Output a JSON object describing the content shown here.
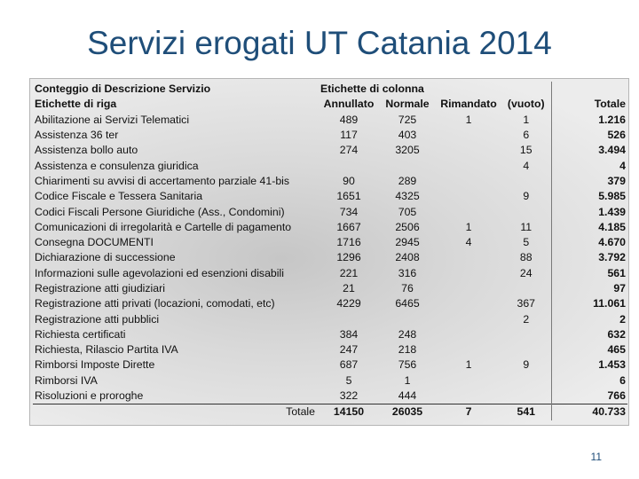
{
  "slide": {
    "title": "Servizi erogati UT Catania 2014",
    "page_number": "11"
  },
  "table": {
    "header_row1": {
      "corner": "Conteggio di Descrizione Servizio",
      "column_labels": "Etichette di colonna"
    },
    "header_row2": {
      "row_labels": "Etichette di riga",
      "annullato": "Annullato",
      "normale": "Normale",
      "rimandato": "Rimandato",
      "vuoto": "(vuoto)",
      "totale": "Totale"
    },
    "rows": [
      {
        "label": "Abilitazione ai Servizi Telematici",
        "annullato": "489",
        "normale": "725",
        "rimandato": "1",
        "vuoto": "1",
        "totale": "1.216"
      },
      {
        "label": "Assistenza 36 ter",
        "annullato": "117",
        "normale": "403",
        "rimandato": "",
        "vuoto": "6",
        "totale": "526"
      },
      {
        "label": "Assistenza bollo auto",
        "annullato": "274",
        "normale": "3205",
        "rimandato": "",
        "vuoto": "15",
        "totale": "3.494"
      },
      {
        "label": "Assistenza e consulenza giuridica",
        "annullato": "",
        "normale": "",
        "rimandato": "",
        "vuoto": "4",
        "totale": "4"
      },
      {
        "label": "Chiarimenti su avvisi di accertamento parziale 41-bis",
        "annullato": "90",
        "normale": "289",
        "rimandato": "",
        "vuoto": "",
        "totale": "379"
      },
      {
        "label": "Codice Fiscale e Tessera Sanitaria",
        "annullato": "1651",
        "normale": "4325",
        "rimandato": "",
        "vuoto": "9",
        "totale": "5.985"
      },
      {
        "label": "Codici Fiscali Persone Giuridiche (Ass., Condomini)",
        "annullato": "734",
        "normale": "705",
        "rimandato": "",
        "vuoto": "",
        "totale": "1.439"
      },
      {
        "label": "Comunicazioni di irregolarità e Cartelle di pagamento",
        "annullato": "1667",
        "normale": "2506",
        "rimandato": "1",
        "vuoto": "11",
        "totale": "4.185"
      },
      {
        "label": "Consegna DOCUMENTI",
        "annullato": "1716",
        "normale": "2945",
        "rimandato": "4",
        "vuoto": "5",
        "totale": "4.670"
      },
      {
        "label": "Dichiarazione di successione",
        "annullato": "1296",
        "normale": "2408",
        "rimandato": "",
        "vuoto": "88",
        "totale": "3.792"
      },
      {
        "label": "Informazioni sulle agevolazioni ed esenzioni disabili",
        "annullato": "221",
        "normale": "316",
        "rimandato": "",
        "vuoto": "24",
        "totale": "561"
      },
      {
        "label": "Registrazione atti giudiziari",
        "annullato": "21",
        "normale": "76",
        "rimandato": "",
        "vuoto": "",
        "totale": "97"
      },
      {
        "label": "Registrazione atti privati (locazioni, comodati, etc)",
        "annullato": "4229",
        "normale": "6465",
        "rimandato": "",
        "vuoto": "367",
        "totale": "11.061"
      },
      {
        "label": "Registrazione atti pubblici",
        "annullato": "",
        "normale": "",
        "rimandato": "",
        "vuoto": "2",
        "totale": "2"
      },
      {
        "label": "Richiesta certificati",
        "annullato": "384",
        "normale": "248",
        "rimandato": "",
        "vuoto": "",
        "totale": "632"
      },
      {
        "label": "Richiesta, Rilascio Partita IVA",
        "annullato": "247",
        "normale": "218",
        "rimandato": "",
        "vuoto": "",
        "totale": "465"
      },
      {
        "label": "Rimborsi Imposte Dirette",
        "annullato": "687",
        "normale": "756",
        "rimandato": "1",
        "vuoto": "9",
        "totale": "1.453"
      },
      {
        "label": "Rimborsi IVA",
        "annullato": "5",
        "normale": "1",
        "rimandato": "",
        "vuoto": "",
        "totale": "6"
      },
      {
        "label": "Risoluzioni e proroghe",
        "annullato": "322",
        "normale": "444",
        "rimandato": "",
        "vuoto": "",
        "totale": "766"
      }
    ],
    "total_row": {
      "label": "Totale",
      "annullato": "14150",
      "normale": "26035",
      "rimandato": "7",
      "vuoto": "541",
      "totale": "40.733"
    }
  }
}
